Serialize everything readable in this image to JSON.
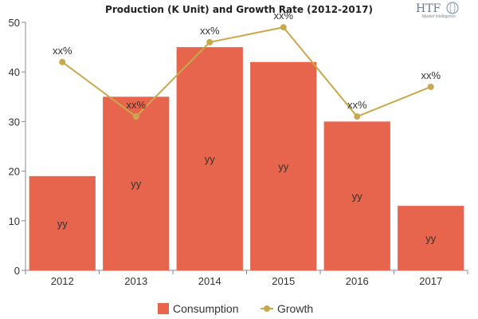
{
  "chart_data": {
    "type": "bar",
    "title": "Production (K Unit) and Growth Rate (2012-2017)",
    "categories": [
      "2012",
      "2013",
      "2014",
      "2015",
      "2016",
      "2017"
    ],
    "series": [
      {
        "name": "Consumption",
        "kind": "bar",
        "values": [
          19,
          35,
          45,
          42,
          30,
          13
        ],
        "labels": [
          "yy",
          "yy",
          "yy",
          "yy",
          "yy",
          "yy"
        ],
        "color": "#e8654d"
      },
      {
        "name": "Growth",
        "kind": "line",
        "values": [
          42,
          31,
          46,
          49,
          31,
          37
        ],
        "labels": [
          "xx%",
          "xx%",
          "xx%",
          "xx%",
          "xx%",
          "xx%"
        ],
        "color": "#c9a84c"
      }
    ],
    "ylim": [
      0,
      50
    ],
    "yticks": [
      0,
      10,
      20,
      30,
      40,
      50
    ],
    "xlabel": "",
    "ylabel": "",
    "legend": "bottom-center",
    "grid": false
  },
  "branding": {
    "logo_text": "HTF",
    "logo_subtext": "Market Intelligence"
  }
}
